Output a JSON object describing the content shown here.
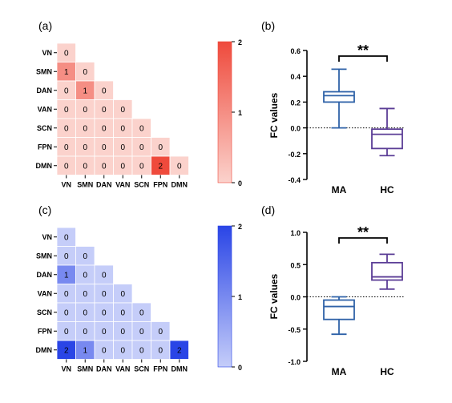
{
  "chart_data": [
    {
      "type": "heatmap",
      "panel_label": "(a)",
      "rows": [
        "VN",
        "SMN",
        "DAN",
        "VAN",
        "SCN",
        "FPN",
        "DMN"
      ],
      "columns": [
        "VN",
        "SMN",
        "DAN",
        "VAN",
        "SCN",
        "FPN",
        "DMN"
      ],
      "values": [
        [
          0
        ],
        [
          1,
          0
        ],
        [
          0,
          1,
          0
        ],
        [
          0,
          0,
          0,
          0
        ],
        [
          0,
          0,
          0,
          0,
          0
        ],
        [
          0,
          0,
          0,
          0,
          0,
          0
        ],
        [
          0,
          0,
          0,
          0,
          0,
          2,
          0
        ]
      ],
      "colorbar": {
        "min": 0,
        "max": 2,
        "ticks": [
          0,
          1,
          2
        ],
        "color_low": "#fbd2cc",
        "color_high": "#ef4a3c"
      }
    },
    {
      "type": "box",
      "panel_label": "(b)",
      "ylabel": "FC  values",
      "ylim": [
        -0.4,
        0.6
      ],
      "yticks": [
        "0.6",
        "0.4",
        "0.2",
        "0.0",
        "-0.2",
        "-0.4"
      ],
      "significance": "**",
      "groups": [
        {
          "name": "MA",
          "color": "#2f62a8",
          "min": 0.0,
          "q1": 0.2,
          "median": 0.25,
          "q3": 0.28,
          "max": 0.455
        },
        {
          "name": "HC",
          "color": "#5b3d96",
          "min": -0.215,
          "q1": -0.16,
          "median": -0.05,
          "q3": -0.01,
          "max": 0.15
        }
      ]
    },
    {
      "type": "heatmap",
      "panel_label": "(c)",
      "rows": [
        "VN",
        "SMN",
        "DAN",
        "VAN",
        "SCN",
        "FPN",
        "DMN"
      ],
      "columns": [
        "VN",
        "SMN",
        "DAN",
        "VAN",
        "SCN",
        "FPN",
        "DMN"
      ],
      "values": [
        [
          0
        ],
        [
          0,
          0
        ],
        [
          1,
          0,
          0
        ],
        [
          0,
          0,
          0,
          0
        ],
        [
          0,
          0,
          0,
          0,
          0
        ],
        [
          0,
          0,
          0,
          0,
          0,
          0
        ],
        [
          2,
          1,
          0,
          0,
          0,
          0,
          2
        ]
      ],
      "colorbar": {
        "min": 0,
        "max": 2,
        "ticks": [
          0,
          1,
          2
        ],
        "color_low": "#c5cdf9",
        "color_high": "#2a45e6"
      }
    },
    {
      "type": "box",
      "panel_label": "(d)",
      "ylabel": "FC  values",
      "ylim": [
        -1.0,
        1.0
      ],
      "yticks": [
        "1.0",
        "0.5",
        "0.0",
        "-0.5",
        "-1.0"
      ],
      "significance": "**",
      "groups": [
        {
          "name": "MA",
          "color": "#2f62a8",
          "min": -0.58,
          "q1": -0.35,
          "median": -0.15,
          "q3": -0.05,
          "max": 0.0
        },
        {
          "name": "HC",
          "color": "#5b3d96",
          "min": 0.12,
          "q1": 0.26,
          "median": 0.31,
          "q3": 0.53,
          "max": 0.66
        }
      ]
    }
  ]
}
